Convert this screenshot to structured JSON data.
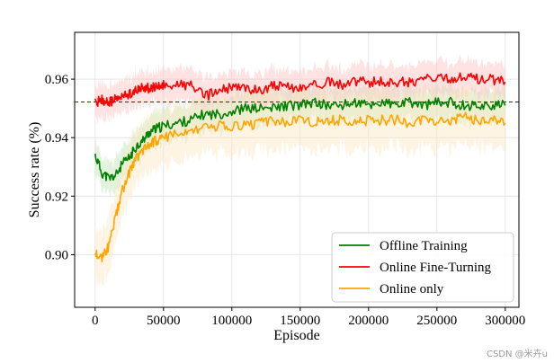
{
  "chart_data": {
    "type": "line",
    "xlabel": "Episode",
    "ylabel": "Success rate (%)",
    "xlim": [
      -15000,
      310000
    ],
    "ylim": [
      0.882,
      0.976
    ],
    "xticks": [
      0,
      50000,
      100000,
      150000,
      200000,
      250000,
      300000
    ],
    "yticks": [
      0.9,
      0.92,
      0.94,
      0.96
    ],
    "xtick_labels": [
      "0",
      "50000",
      "100000",
      "150000",
      "200000",
      "250000",
      "300000"
    ],
    "ytick_labels": [
      "0.90",
      "0.92",
      "0.94",
      "0.96"
    ],
    "grid": true,
    "legend_position": "bottom-right",
    "reference_line": {
      "y": 0.9522,
      "style": "dashed",
      "color": "#1f1fb4"
    },
    "x": [
      0,
      5000,
      10000,
      15000,
      20000,
      25000,
      30000,
      35000,
      40000,
      45000,
      50000,
      60000,
      70000,
      80000,
      90000,
      100000,
      110000,
      120000,
      130000,
      140000,
      150000,
      160000,
      170000,
      180000,
      190000,
      200000,
      210000,
      220000,
      230000,
      240000,
      250000,
      260000,
      270000,
      280000,
      290000,
      300000
    ],
    "series": [
      {
        "name": "Offline Training",
        "color": "#008000",
        "band_color": "#bfe3b4",
        "values": [
          0.934,
          0.928,
          0.926,
          0.927,
          0.931,
          0.933,
          0.937,
          0.939,
          0.942,
          0.943,
          0.944,
          0.945,
          0.946,
          0.948,
          0.948,
          0.949,
          0.95,
          0.95,
          0.95,
          0.951,
          0.951,
          0.952,
          0.951,
          0.951,
          0.952,
          0.951,
          0.952,
          0.951,
          0.952,
          0.951,
          0.952,
          0.952,
          0.951,
          0.951,
          0.951,
          0.951
        ],
        "band": 0.006
      },
      {
        "name": "Online Fine-Turning",
        "color": "#ff0000",
        "band_color": "#ffc0c0",
        "values": [
          0.952,
          0.953,
          0.952,
          0.953,
          0.954,
          0.955,
          0.956,
          0.957,
          0.957,
          0.957,
          0.958,
          0.958,
          0.958,
          0.954,
          0.956,
          0.957,
          0.957,
          0.956,
          0.958,
          0.957,
          0.957,
          0.958,
          0.959,
          0.958,
          0.959,
          0.959,
          0.959,
          0.959,
          0.959,
          0.96,
          0.96,
          0.96,
          0.961,
          0.96,
          0.96,
          0.959
        ],
        "band": 0.006
      },
      {
        "name": "Online only",
        "color": "#ffa500",
        "band_color": "#fde7c2",
        "values": [
          0.901,
          0.899,
          0.903,
          0.913,
          0.922,
          0.928,
          0.933,
          0.936,
          0.938,
          0.939,
          0.94,
          0.941,
          0.942,
          0.943,
          0.944,
          0.944,
          0.944,
          0.945,
          0.946,
          0.945,
          0.946,
          0.945,
          0.946,
          0.946,
          0.945,
          0.946,
          0.946,
          0.946,
          0.945,
          0.946,
          0.945,
          0.946,
          0.947,
          0.946,
          0.946,
          0.945
        ],
        "band": 0.01
      }
    ]
  },
  "watermark": "CSDN @米卉u"
}
